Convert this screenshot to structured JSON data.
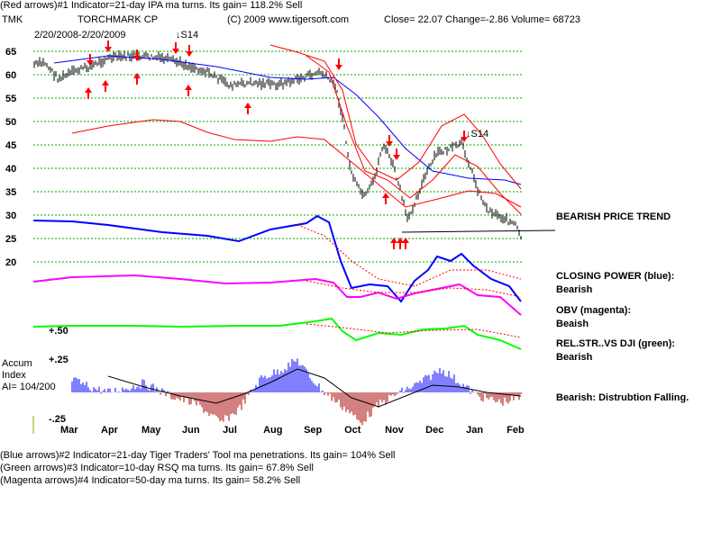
{
  "header": {
    "top_line": "(Red arrows)#1 Indicator=21-day IPA ma turns. Its gain= 118.2% Sell",
    "ticker": "TMK",
    "company": "TORCHMARK CP",
    "copyright": "(C) 2009 www.tigersoft.com",
    "quote": "Close=  22.07  Change=-2.86 Volume= 68723",
    "date_range": "2/20/2008-2/20/2009"
  },
  "footer": {
    "lines": [
      "(Blue arrows)#2 Indicator=21-day Tiger Traders' Tool ma penetrations. Its gain= 104% Sell",
      "(Green arrows)#3 Indicator=10-day RSQ ma turns. Its gain= 67.8% Sell",
      "(Magenta arrows)#4 Indicator=50-day ma turns. Its gain= 58.2% Sell"
    ]
  },
  "annotations": {
    "trend": "BEARISH PRICE TREND",
    "cp_label": "CLOSING POWER (blue):",
    "cp_value": "Bearish",
    "obv_label": "OBV (magenta):",
    "obv_value": "Beaish",
    "rs_label": "REL.STR..VS DJI (green):",
    "rs_value": "Bearish",
    "accum_note": "Bearish: Distrubtion Falling.",
    "s14_first": "↓S14",
    "s14_second": "↓S14"
  },
  "accum_panel": {
    "label_line1": "Accum",
    "label_line2": "Index",
    "label_line3": "AI= 104/200",
    "top_tick": "+.25",
    "bottom_tick": "-.25",
    "rs_tick": "+.50"
  },
  "colors": {
    "price": "#000000",
    "ma": "#ff0000",
    "ma50": "#0000ff",
    "closing_power": "#0000ff",
    "obv": "#ff00ff",
    "rel_strength": "#00ff00",
    "grid": "#00aa00",
    "arrow": "#ff0000",
    "accum_pos": "#0000ff",
    "accum_neg": "#aa0000"
  },
  "chart_data": {
    "type": "line",
    "title": "TORCHMARK CP",
    "x_ticks": [
      "Mar",
      "Apr",
      "May",
      "Jun",
      "Jul",
      "Aug",
      "Sep",
      "Oct",
      "Nov",
      "Dec",
      "Jan",
      "Feb"
    ],
    "y_ticks": [
      65,
      60,
      55,
      50,
      45,
      40,
      35,
      30,
      25,
      20
    ],
    "ylim": [
      18,
      67
    ],
    "grid": true,
    "series": [
      {
        "name": "",
        "x": [
          "Mar",
          "Apr",
          "May",
          "Jun",
          "Jul",
          "Aug",
          "Sep",
          "Oct",
          "Nov",
          "Dec",
          "Jan",
          "Feb"
        ],
        "values": [
          62,
          63,
          64,
          62.5,
          59,
          59.5,
          62,
          36,
          33,
          41,
          31,
          22.07
        ]
      }
    ],
    "close": 22.07,
    "accum_ylim": [
      -0.25,
      0.25
    ]
  }
}
